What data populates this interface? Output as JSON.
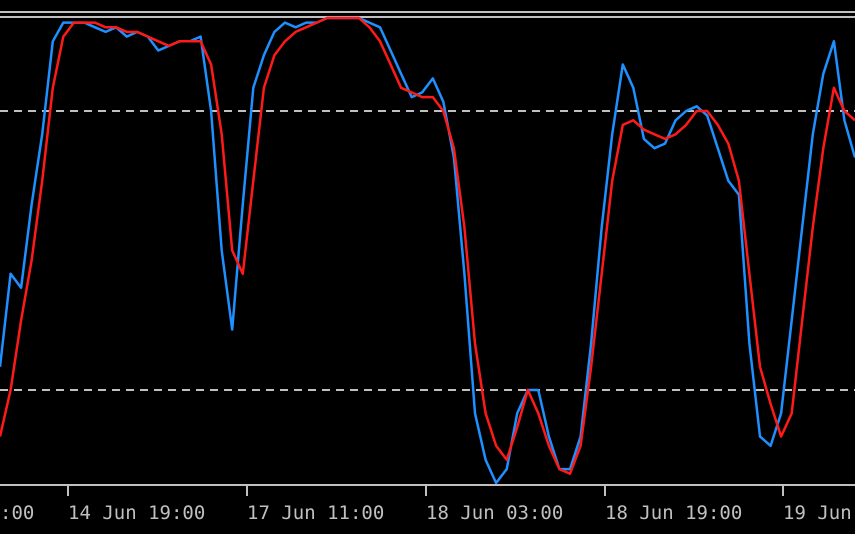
{
  "chart_data": {
    "type": "line",
    "title": "",
    "xlabel": "",
    "ylabel": "",
    "ylim": [
      0,
      100
    ],
    "levels": [
      20,
      80
    ],
    "x_tick_labels": [
      ":00",
      "14 Jun 19:00",
      "17 Jun 11:00",
      "18 Jun 03:00",
      "18 Jun 19:00",
      "19 Jun"
    ],
    "grid": false,
    "legend": "none",
    "colors": {
      "background": "#000000",
      "axis": "#c0c0c0",
      "level": "#c0c0c0",
      "main_line": "#1e90ff",
      "signal_line": "#ff1a1a"
    },
    "series": [
      {
        "values": [
          25,
          45,
          42,
          60,
          75,
          95,
          99,
          99,
          99,
          98,
          97,
          98,
          96,
          97,
          96,
          93,
          94,
          95,
          95,
          96,
          80,
          50,
          33,
          60,
          85,
          92,
          97,
          99,
          98,
          99,
          99,
          100,
          100,
          100,
          100,
          99,
          98,
          93,
          88,
          83,
          84,
          87,
          82,
          70,
          45,
          15,
          5,
          0,
          3,
          15,
          20,
          20,
          10,
          3,
          3,
          10,
          30,
          55,
          75,
          90,
          85,
          74,
          72,
          73,
          78,
          80,
          81,
          79,
          72,
          65,
          62,
          30,
          10,
          8,
          15,
          35,
          55,
          75,
          88,
          95,
          78,
          70
        ]
      },
      {
        "values": [
          10,
          20,
          35,
          48,
          65,
          85,
          96,
          99,
          99,
          99,
          98,
          98,
          97,
          97,
          96,
          95,
          94,
          95,
          95,
          95,
          90,
          75,
          50,
          45,
          65,
          85,
          92,
          95,
          97,
          98,
          99,
          100,
          100,
          100,
          100,
          98,
          95,
          90,
          85,
          84,
          83,
          83,
          80,
          72,
          55,
          30,
          15,
          8,
          5,
          12,
          20,
          15,
          8,
          3,
          2,
          8,
          25,
          45,
          65,
          77,
          78,
          76,
          75,
          74,
          75,
          77,
          80,
          80,
          77,
          73,
          65,
          45,
          25,
          17,
          10,
          15,
          35,
          55,
          72,
          85,
          80,
          78
        ]
      }
    ]
  }
}
